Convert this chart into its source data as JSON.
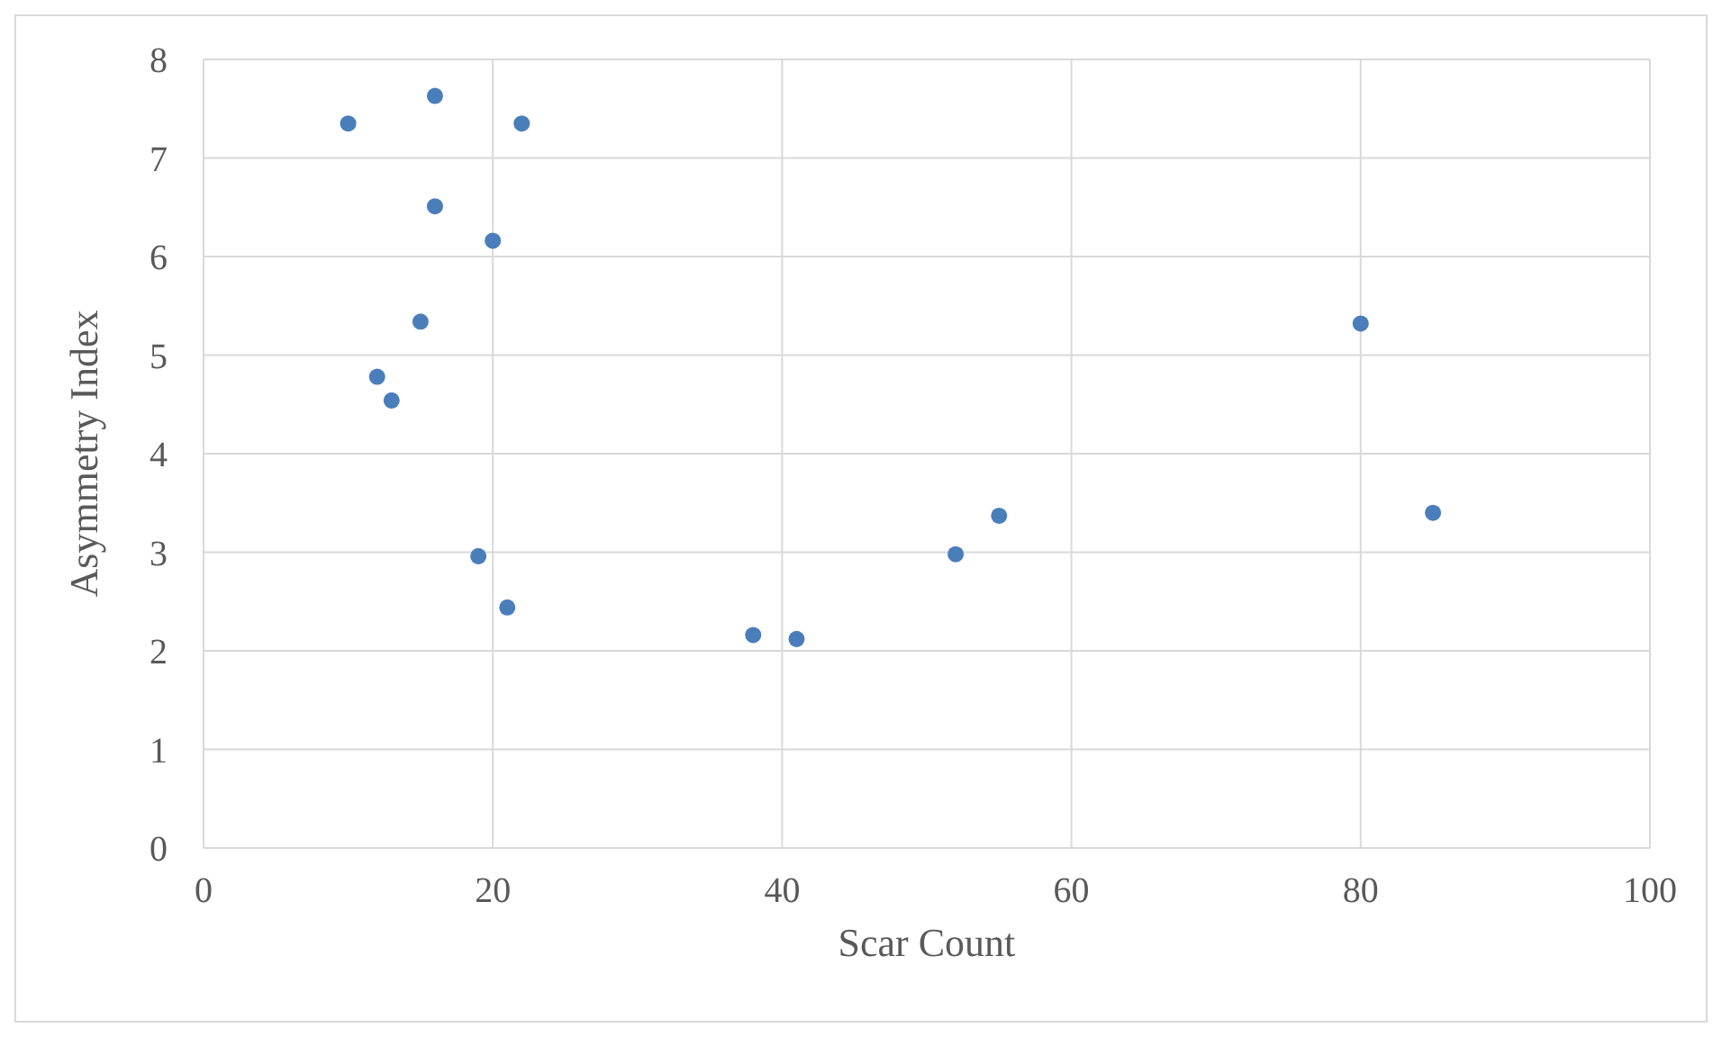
{
  "chart_data": {
    "type": "scatter",
    "xlabel": "Scar Count",
    "ylabel": "Asymmetry Index",
    "x": [
      10,
      16,
      22,
      16,
      20,
      15,
      12,
      13,
      19,
      21,
      38,
      41,
      52,
      55,
      80,
      85
    ],
    "values": [
      7.35,
      7.63,
      7.35,
      6.51,
      6.16,
      5.34,
      4.78,
      4.54,
      2.96,
      2.44,
      2.16,
      2.12,
      2.98,
      3.37,
      5.32,
      3.4
    ],
    "color": "#4a7ebb",
    "marker": "circle",
    "xlim": [
      0,
      100
    ],
    "xticks": [
      0,
      20,
      40,
      60,
      80,
      100
    ],
    "ylim": [
      0,
      8
    ],
    "yticks": [
      0,
      1,
      2,
      3,
      4,
      5,
      6,
      7,
      8
    ],
    "grid": true,
    "legend": false
  }
}
